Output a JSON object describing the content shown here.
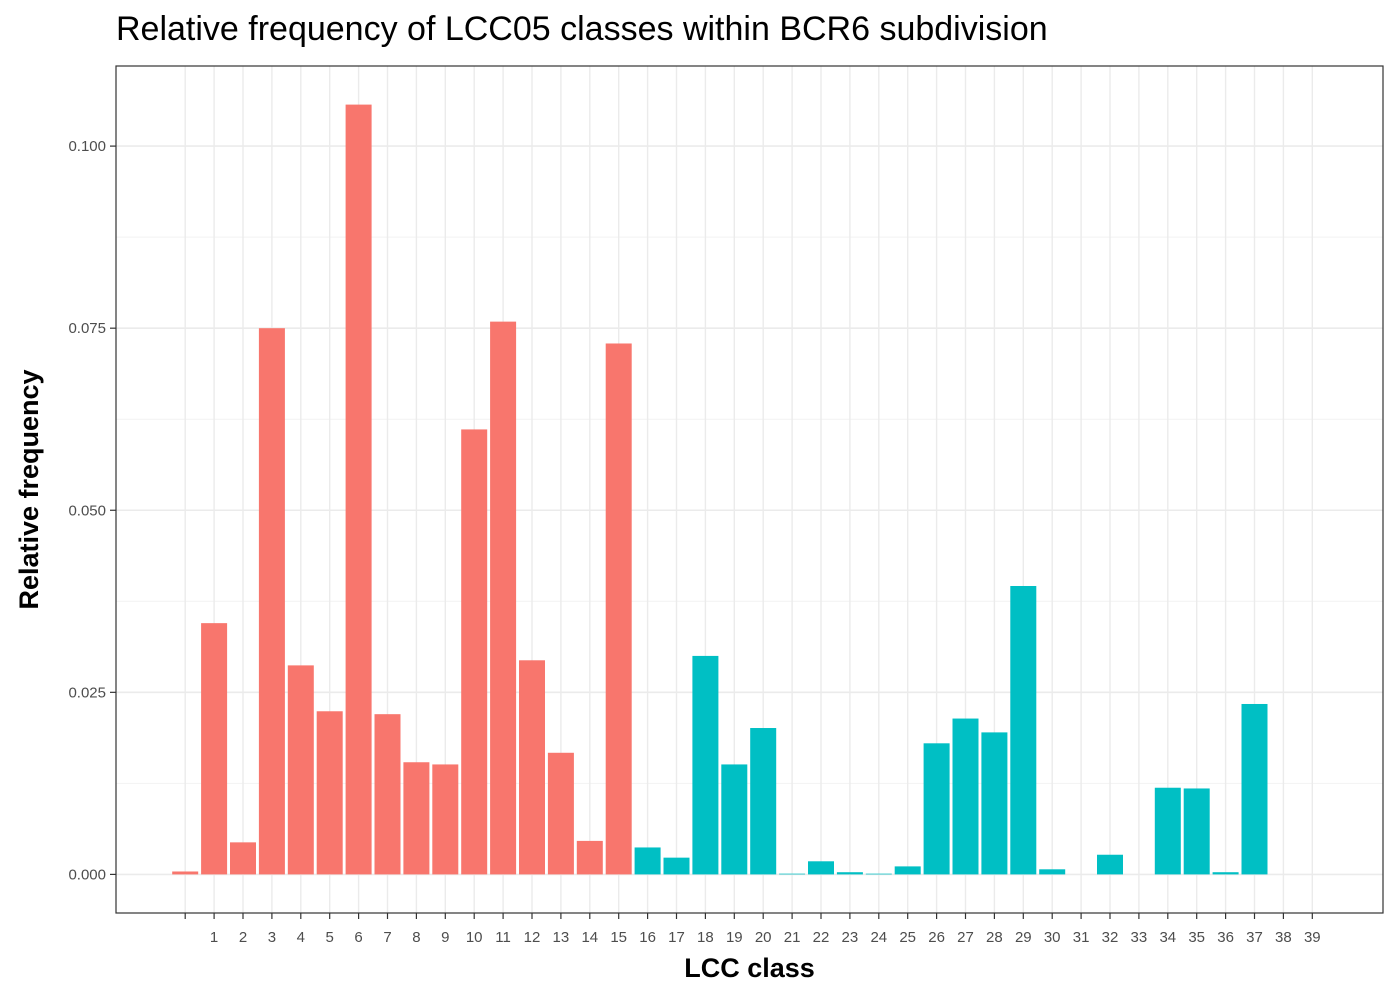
{
  "chart_data": {
    "type": "bar",
    "title": "Relative frequency of LCC05 classes within BCR6 subdivision",
    "xlabel": "LCC class",
    "ylabel": "Relative frequency",
    "categories": [
      "",
      "1",
      "2",
      "3",
      "4",
      "5",
      "6",
      "7",
      "8",
      "9",
      "10",
      "11",
      "12",
      "13",
      "14",
      "15",
      "16",
      "17",
      "18",
      "19",
      "20",
      "21",
      "22",
      "23",
      "24",
      "25",
      "26",
      "27",
      "28",
      "29",
      "30",
      "31",
      "32",
      "33",
      "34",
      "35",
      "36",
      "37",
      "38",
      "39"
    ],
    "values": [
      0.0004,
      0.0345,
      0.0044,
      0.075,
      0.0287,
      0.0224,
      0.1057,
      0.022,
      0.0154,
      0.0151,
      0.0611,
      0.0759,
      0.0294,
      0.0167,
      0.0046,
      0.0729,
      0.0037,
      0.0023,
      0.03,
      0.0151,
      0.0201,
      0.0001,
      0.0018,
      0.0003,
      0.0001,
      0.0011,
      0.018,
      0.0214,
      0.0195,
      0.0396,
      0.0007,
      0.0,
      0.0027,
      0.0,
      0.0119,
      0.0118,
      0.0003,
      0.0234,
      0.0,
      0.0
    ],
    "group_colors": [
      "#F8766D",
      "#00BFC4"
    ],
    "group_split_after_category": "15",
    "ylim": [
      -0.0053,
      0.111
    ],
    "yticks": [
      0.0,
      0.025,
      0.05,
      0.075,
      0.1
    ],
    "ytick_labels": [
      "0.000",
      "0.025",
      "0.050",
      "0.075",
      "0.100"
    ],
    "grid": true,
    "legend": "none"
  }
}
